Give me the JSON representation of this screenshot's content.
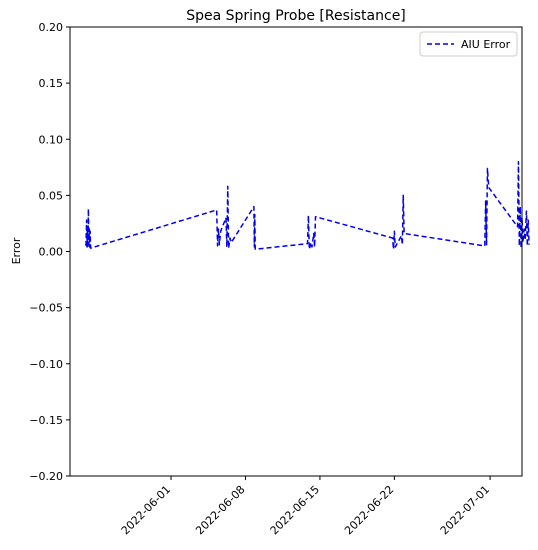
{
  "chart_data": {
    "type": "line",
    "title": "Spea Spring Probe [Resistance]",
    "xlabel": "",
    "ylabel": "Error",
    "xlim": [
      "2022-05-22T12:00",
      "2022-07-04T00:00"
    ],
    "ylim": [
      -0.2,
      0.2
    ],
    "yticks": [
      0.2,
      0.15,
      0.1,
      0.05,
      0.0,
      -0.05,
      -0.1,
      -0.15,
      -0.2
    ],
    "ytick_labels": [
      "0.20",
      "0.15",
      "0.10",
      "0.05",
      "0.00",
      "−0.05",
      "−0.10",
      "−0.15",
      "−0.20"
    ],
    "xticks": [
      "2022-06-01",
      "2022-06-08",
      "2022-06-15",
      "2022-06-22",
      "2022-07-01"
    ],
    "grid": false,
    "legend_position": "top-right",
    "series": [
      {
        "name": "AIU Error",
        "color": "#0000ee",
        "linestyle": "dashed",
        "points": [
          [
            "2022-05-24T00:00",
            0.005
          ],
          [
            "2022-05-24T01:30",
            0.028
          ],
          [
            "2022-05-24T02:30",
            0.004
          ],
          [
            "2022-05-24T03:30",
            0.022
          ],
          [
            "2022-05-24T04:30",
            0.003
          ],
          [
            "2022-05-24T05:30",
            0.038
          ],
          [
            "2022-05-24T06:30",
            0.006
          ],
          [
            "2022-05-24T07:30",
            0.02
          ],
          [
            "2022-05-24T08:30",
            0.004
          ],
          [
            "2022-05-24T09:30",
            0.018
          ],
          [
            "2022-05-24T10:30",
            0.003
          ],
          [
            "2022-06-05T07:00",
            0.037
          ],
          [
            "2022-06-05T09:00",
            0.005
          ],
          [
            "2022-06-05T11:00",
            0.02
          ],
          [
            "2022-06-05T13:00",
            0.006
          ],
          [
            "2022-06-05T16:00",
            0.018
          ],
          [
            "2022-06-06T04:00",
            0.03
          ],
          [
            "2022-06-06T06:00",
            0.004
          ],
          [
            "2022-06-06T08:00",
            0.058
          ],
          [
            "2022-06-06T10:00",
            0.003
          ],
          [
            "2022-06-06T13:00",
            0.012
          ],
          [
            "2022-06-06T16:00",
            0.008
          ],
          [
            "2022-06-08T19:00",
            0.04
          ],
          [
            "2022-06-08T20:00",
            0.004
          ],
          [
            "2022-06-08T21:00",
            0.033
          ],
          [
            "2022-06-08T22:00",
            0.002
          ],
          [
            "2022-06-13T20:00",
            0.007
          ],
          [
            "2022-06-13T22:00",
            0.032
          ],
          [
            "2022-06-14T00:00",
            0.002
          ],
          [
            "2022-06-14T04:00",
            0.008
          ],
          [
            "2022-06-14T06:00",
            0.004
          ],
          [
            "2022-06-14T10:00",
            0.016
          ],
          [
            "2022-06-14T12:00",
            0.004
          ],
          [
            "2022-06-14T14:00",
            0.031
          ],
          [
            "2022-06-21T20:00",
            0.012
          ],
          [
            "2022-06-21T22:00",
            0.002
          ],
          [
            "2022-06-22T00:00",
            0.018
          ],
          [
            "2022-06-22T02:00",
            0.004
          ],
          [
            "2022-06-22T16:00",
            0.014
          ],
          [
            "2022-06-22T18:00",
            0.006
          ],
          [
            "2022-06-22T20:00",
            0.05
          ],
          [
            "2022-06-22T22:00",
            0.016
          ],
          [
            "2022-06-30T12:00",
            0.005
          ],
          [
            "2022-06-30T14:00",
            0.045
          ],
          [
            "2022-06-30T16:00",
            0.006
          ],
          [
            "2022-06-30T18:00",
            0.074
          ],
          [
            "2022-06-30T21:00",
            0.057
          ],
          [
            "2022-07-03T14:00",
            0.022
          ],
          [
            "2022-07-03T16:00",
            0.08
          ],
          [
            "2022-07-03T18:00",
            0.005
          ],
          [
            "2022-07-03T20:00",
            0.04
          ],
          [
            "2022-07-03T22:00",
            0.003
          ],
          [
            "2022-07-04T00:00",
            0.03
          ],
          [
            "2022-07-04T02:00",
            0.008
          ],
          [
            "2022-07-04T05:00",
            0.02
          ],
          [
            "2022-07-04T07:00",
            0.01
          ],
          [
            "2022-07-04T10:00",
            0.036
          ],
          [
            "2022-07-04T12:00",
            0.005
          ],
          [
            "2022-07-04T14:00",
            0.028
          ],
          [
            "2022-07-04T16:00",
            0.006
          ]
        ]
      }
    ]
  }
}
